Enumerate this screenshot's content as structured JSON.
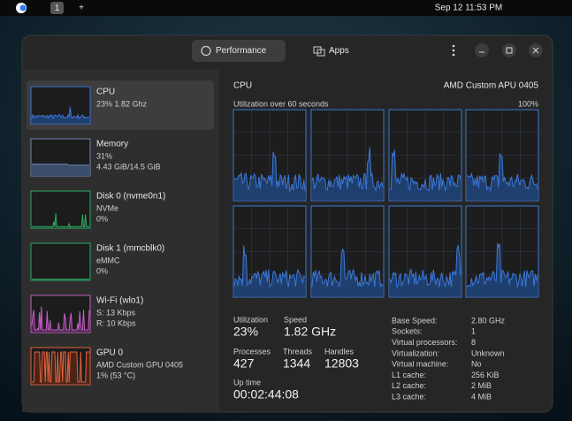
{
  "topbar": {
    "workspace": "1",
    "add": "+",
    "clock": "Sep 12  11:53 PM"
  },
  "tabs": [
    "Performance",
    "Apps"
  ],
  "sidebar": [
    {
      "name": "CPU",
      "lines": [
        "23% 1.82 Ghz"
      ]
    },
    {
      "name": "Memory",
      "lines": [
        "31%",
        "4.43 GiB/14.5 GiB"
      ]
    },
    {
      "name": "Disk 0 (nvme0n1)",
      "lines": [
        "NVMe",
        "0%"
      ]
    },
    {
      "name": "Disk 1 (mmcblk0)",
      "lines": [
        "eMMC",
        "0%"
      ]
    },
    {
      "name": "Wi-Fi (wlo1)",
      "lines": [
        "S: 13 Kbps",
        "R: 10 Kbps"
      ]
    },
    {
      "name": "GPU 0",
      "lines": [
        "AMD Custom GPU 0405",
        "1% (53 °C)"
      ]
    }
  ],
  "main": {
    "title": "CPU",
    "model": "AMD Custom APU 0405",
    "graph_label": "Utilization over 60 seconds",
    "graph_max": "100%",
    "stats": [
      {
        "label": "Utilization",
        "value": "23%"
      },
      {
        "label": "Speed",
        "value": "1.82 GHz"
      },
      {
        "label": "Processes",
        "value": "427"
      },
      {
        "label": "Threads",
        "value": "1344"
      },
      {
        "label": "Handles",
        "value": "12803"
      },
      {
        "label": "Up time",
        "value": "00:02:44:08"
      }
    ],
    "details": [
      [
        "Base Speed:",
        "2.80 GHz"
      ],
      [
        "Sockets:",
        "1"
      ],
      [
        "Virtual processors:",
        "8"
      ],
      [
        "Virtualization:",
        "Unknown"
      ],
      [
        "Virtual machine:",
        "No"
      ],
      [
        "L1 cache:",
        "256 KiB"
      ],
      [
        "L2 cache:",
        "2 MiB"
      ],
      [
        "L3 cache:",
        "4 MiB"
      ]
    ]
  }
}
